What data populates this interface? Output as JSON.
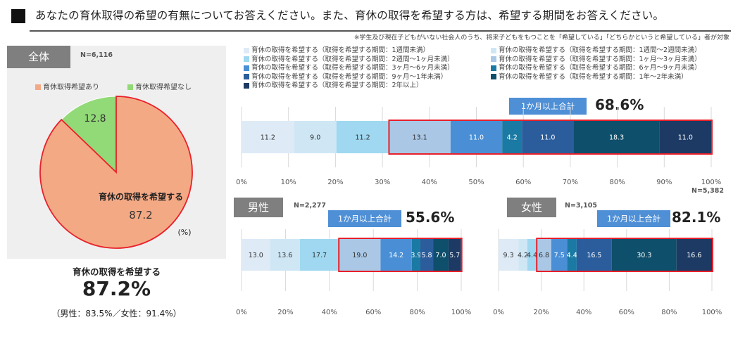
{
  "header": {
    "title": "あなたの育休取得の希望の有無についてお答えください。また、育休の取得を希望する方は、希望する期間をお答えください。",
    "note": "※学生及び現在子どもがいない社会人のうち、将来子どもをもつことを「希望している」「どちらかというと希望している」者が対象"
  },
  "pie_panel": {
    "tag": "全体",
    "n": "N=6,116",
    "legend": [
      "育休取得希望あり",
      "育休取得希望なし"
    ],
    "inner_label": "育休の取得を希望する",
    "unit": "(%)",
    "summary_label": "育休の取得を希望する",
    "summary_value": "87.2%",
    "summary_sub": "（男性：83.5%／女性：91.4%）"
  },
  "bar_legend": [
    "育休の取得を希望する（取得を希望する期間：1週間未満）",
    "育休の取得を希望する（取得を希望する期間：1週間～2週間未満）",
    "育休の取得を希望する（取得を希望する期間：2週間～1ヶ月未満）",
    "育休の取得を希望する（取得を希望する期間：1ヶ月～3ヶ月未満）",
    "育休の取得を希望する（取得を希望する期間：3ヶ月～6ヶ月未満）",
    "育休の取得を希望する（取得を希望する期間：6ヶ月～9ヶ月未満）",
    "育休の取得を希望する（取得を希望する期間：9ヶ月～1年未満）",
    "育休の取得を希望する（取得を希望する期間：1年～2年未満）",
    "育休の取得を希望する（取得を希望する期間：2年以上）"
  ],
  "colors": {
    "pie_yes": "#f4a985",
    "pie_no": "#92d977",
    "highlight": "#e8202a",
    "tag_bg": "#7f7f7f",
    "sum_box": "#4e8fd6",
    "segments": [
      "#deebf7",
      "#cfe7f5",
      "#9fd8f0",
      "#aac8e6",
      "#4a8fd6",
      "#1a7aa3",
      "#2b5d9c",
      "#0e4f6b",
      "#1c3a63"
    ]
  },
  "chart_data": [
    {
      "type": "pie",
      "categories": [
        "育休取得希望あり",
        "育休取得希望なし"
      ],
      "values": [
        87.2,
        12.8
      ],
      "data_labels": [
        "87.2",
        "12.8"
      ]
    },
    {
      "type": "bar",
      "orientation": "horizontal-stacked",
      "tag": "",
      "n": "N=5,382",
      "values": [
        11.2,
        9.0,
        11.2,
        13.1,
        11.0,
        4.2,
        11.0,
        18.3,
        11.0
      ],
      "labels": [
        "11.2",
        "9.0",
        "11.2",
        "13.1",
        "11.0",
        "4.2",
        "11.0",
        "18.3",
        "11.0"
      ],
      "highlight_from_segment": 3,
      "sum_label": "1か月以上合計",
      "sum_value": "68.6%",
      "xlim": [
        0,
        100
      ],
      "ticks": [
        "0%",
        "10%",
        "20%",
        "30%",
        "40%",
        "50%",
        "60%",
        "70%",
        "80%",
        "90%",
        "100%"
      ]
    },
    {
      "type": "bar",
      "orientation": "horizontal-stacked",
      "tag": "男性",
      "n": "N=2,277",
      "values": [
        13.0,
        13.6,
        17.7,
        19.0,
        14.2,
        3.9,
        5.8,
        7.0,
        5.7
      ],
      "labels": [
        "13.0",
        "13.6",
        "17.7",
        "19.0",
        "14.2",
        "3.9",
        "5.8",
        "7.0",
        "5.7"
      ],
      "highlight_from_segment": 3,
      "sum_label": "1か月以上合計",
      "sum_value": "55.6%",
      "xlim": [
        0,
        100
      ],
      "ticks": [
        "0%",
        "20%",
        "40%",
        "60%",
        "80%",
        "100%"
      ]
    },
    {
      "type": "bar",
      "orientation": "horizontal-stacked",
      "tag": "女性",
      "n": "N=3,105",
      "values": [
        9.3,
        4.2,
        4.4,
        6.8,
        7.5,
        4.4,
        16.5,
        30.3,
        16.6
      ],
      "labels": [
        "9.3",
        "4.2",
        "4.4",
        "6.8",
        "7.5",
        "4.4",
        "16.5",
        "30.3",
        "16.6"
      ],
      "highlight_from_segment": 3,
      "sum_label": "1か月以上合計",
      "sum_value": "82.1%",
      "xlim": [
        0,
        100
      ],
      "ticks": [
        "0%",
        "20%",
        "40%",
        "60%",
        "80%",
        "100%"
      ]
    }
  ]
}
